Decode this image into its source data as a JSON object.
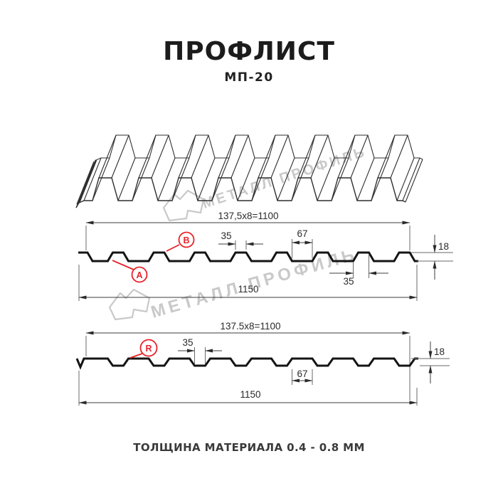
{
  "header": {
    "title": "ПРОФЛИСТ",
    "subtitle": "МП-20"
  },
  "watermark": {
    "text": "МЕТАЛЛ ПРОФИЛЬ",
    "color": "#c9c9c9"
  },
  "colors": {
    "accent_red": "#e8232b",
    "drawing_line": "#2a2a2a",
    "profile_line": "#141414"
  },
  "top_section": {
    "working_width_label": "137,5x8=1100",
    "crest_width_label": "35",
    "valley_width_label": "67",
    "height_label": "18",
    "rib_base_label": "35",
    "overall_width_label": "1150",
    "marker_a": "A",
    "marker_b": "B"
  },
  "bottom_section": {
    "working_width_label": "137.5x8=1100",
    "crest_width_label": "35",
    "valley_width_label": "67",
    "height_label": "18",
    "overall_width_label": "1150",
    "marker_r": "R"
  },
  "footer": {
    "text": "ТОЛЩИНА МАТЕРИАЛА 0.4 - 0.8 ММ"
  }
}
